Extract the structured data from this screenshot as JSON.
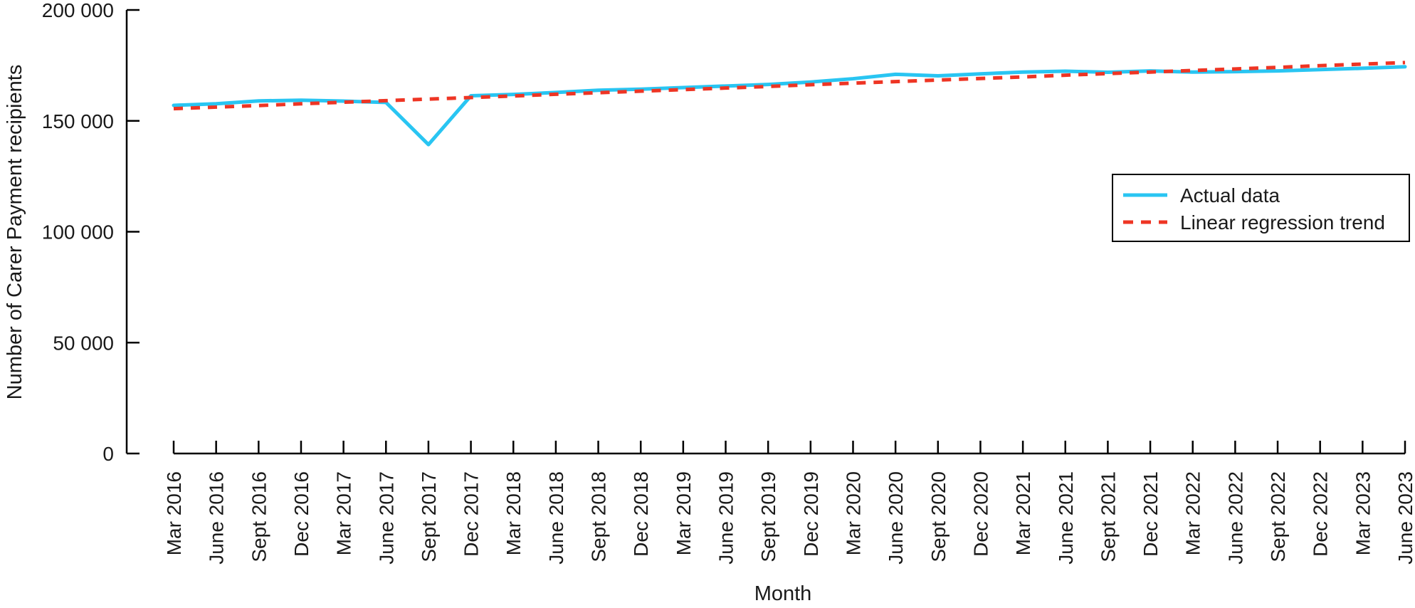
{
  "figure": {
    "xlabel": "Month",
    "ylabel": "Number of Carer Payment recipients",
    "background_color": "#ffffff",
    "axis_color": "#000000",
    "text_color": "#1a1a1a"
  },
  "legend": {
    "items": [
      {
        "label": "Actual data",
        "color": "#29c5f2",
        "style": "solid"
      },
      {
        "label": "Linear regression trend",
        "color": "#ee3524",
        "style": "dashed"
      }
    ]
  },
  "chart_data": {
    "type": "line",
    "title": "",
    "xlabel": "Month",
    "ylabel": "Number of Carer Payment recipients",
    "ylim": [
      0,
      200000
    ],
    "grid": false,
    "legend_position": "upper right",
    "y_ticks": [
      0,
      50000,
      100000,
      150000,
      200000
    ],
    "y_tick_labels": [
      "0",
      "50 000",
      "100 000",
      "150 000",
      "200 000"
    ],
    "categories": [
      "Mar 2016",
      "June 2016",
      "Sept 2016",
      "Dec 2016",
      "Mar 2017",
      "June 2017",
      "Sept 2017",
      "Dec 2017",
      "Mar 2018",
      "June 2018",
      "Sept 2018",
      "Dec 2018",
      "Mar 2019",
      "June 2019",
      "Sept 2019",
      "Dec 2019",
      "Mar 2020",
      "June 2020",
      "Sept 2020",
      "Dec 2020",
      "Mar 2021",
      "June 2021",
      "Sept 2021",
      "Dec 2021",
      "Mar 2022",
      "June 2022",
      "Sept 2022",
      "Dec 2022",
      "Mar 2023",
      "June 2023"
    ],
    "series": [
      {
        "name": "Actual data",
        "color": "#29c5f2",
        "style": "solid",
        "values": [
          157000,
          157700,
          159000,
          159300,
          158900,
          158300,
          139300,
          161300,
          161900,
          162800,
          163800,
          164300,
          165000,
          165700,
          166400,
          167500,
          169000,
          171000,
          170300,
          171200,
          172000,
          172400,
          171900,
          172500,
          172000,
          172200,
          172500,
          173100,
          173700,
          174400
        ]
      },
      {
        "name": "Linear regression trend",
        "color": "#ee3524",
        "style": "dashed",
        "values": [
          155500,
          156200,
          156900,
          157700,
          158400,
          159100,
          159800,
          160500,
          161200,
          162000,
          162700,
          163400,
          164100,
          164800,
          165500,
          166300,
          167000,
          167700,
          168400,
          169100,
          169800,
          170600,
          171300,
          172000,
          172700,
          173400,
          174100,
          174900,
          175600,
          176300
        ]
      }
    ]
  }
}
